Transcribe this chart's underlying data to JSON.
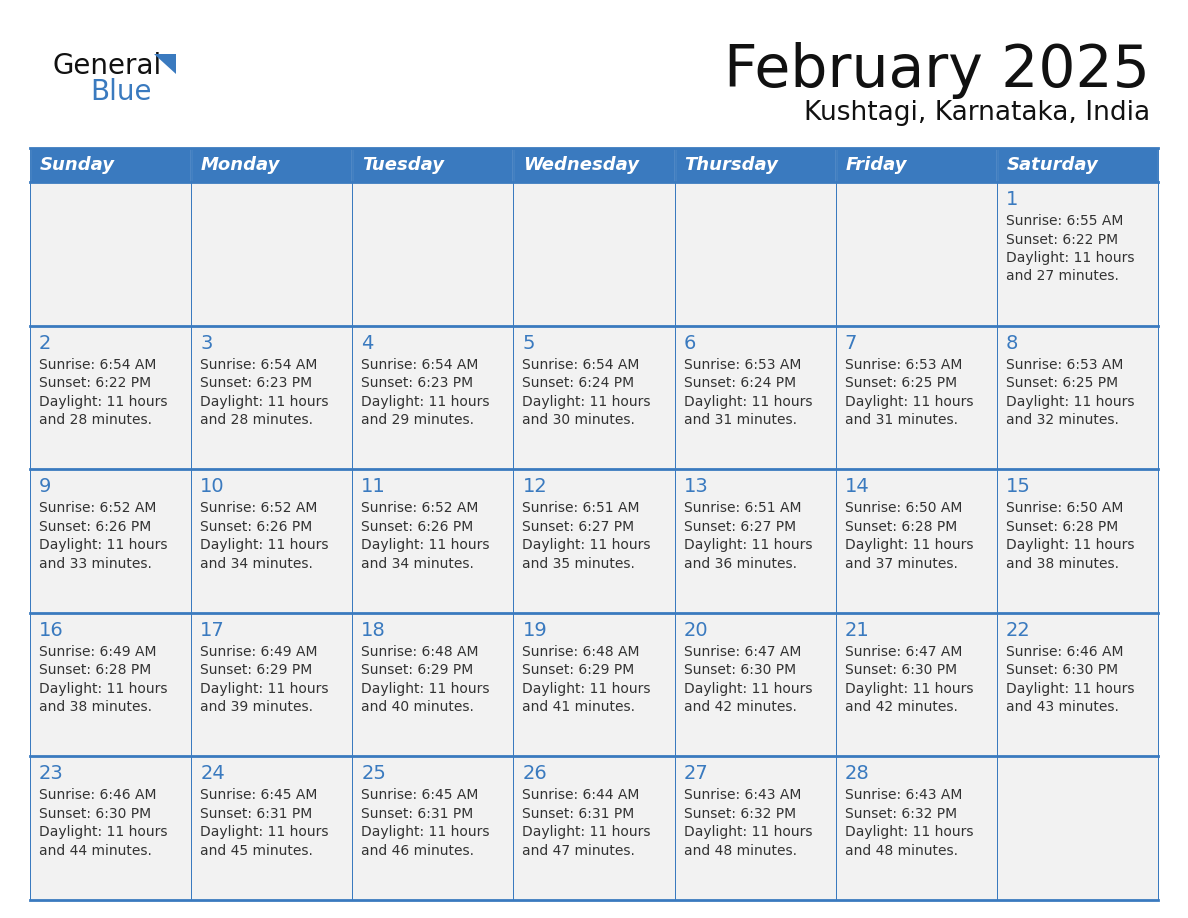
{
  "title": "February 2025",
  "subtitle": "Kushtagi, Karnataka, India",
  "header_color": "#3a7abf",
  "header_text_color": "#ffffff",
  "cell_bg_color": "#f2f2f2",
  "cell_bg_white": "#ffffff",
  "cell_border_color": "#3a7abf",
  "day_number_color": "#3a7abf",
  "cell_text_color": "#333333",
  "days_of_week": [
    "Sunday",
    "Monday",
    "Tuesday",
    "Wednesday",
    "Thursday",
    "Friday",
    "Saturday"
  ],
  "calendar_data": [
    [
      null,
      null,
      null,
      null,
      null,
      null,
      {
        "day": 1,
        "sunrise": "6:55 AM",
        "sunset": "6:22 PM",
        "daylight_min": "27"
      }
    ],
    [
      {
        "day": 2,
        "sunrise": "6:54 AM",
        "sunset": "6:22 PM",
        "daylight_min": "28"
      },
      {
        "day": 3,
        "sunrise": "6:54 AM",
        "sunset": "6:23 PM",
        "daylight_min": "28"
      },
      {
        "day": 4,
        "sunrise": "6:54 AM",
        "sunset": "6:23 PM",
        "daylight_min": "29"
      },
      {
        "day": 5,
        "sunrise": "6:54 AM",
        "sunset": "6:24 PM",
        "daylight_min": "30"
      },
      {
        "day": 6,
        "sunrise": "6:53 AM",
        "sunset": "6:24 PM",
        "daylight_min": "31"
      },
      {
        "day": 7,
        "sunrise": "6:53 AM",
        "sunset": "6:25 PM",
        "daylight_min": "31"
      },
      {
        "day": 8,
        "sunrise": "6:53 AM",
        "sunset": "6:25 PM",
        "daylight_min": "32"
      }
    ],
    [
      {
        "day": 9,
        "sunrise": "6:52 AM",
        "sunset": "6:26 PM",
        "daylight_min": "33"
      },
      {
        "day": 10,
        "sunrise": "6:52 AM",
        "sunset": "6:26 PM",
        "daylight_min": "34"
      },
      {
        "day": 11,
        "sunrise": "6:52 AM",
        "sunset": "6:26 PM",
        "daylight_min": "34"
      },
      {
        "day": 12,
        "sunrise": "6:51 AM",
        "sunset": "6:27 PM",
        "daylight_min": "35"
      },
      {
        "day": 13,
        "sunrise": "6:51 AM",
        "sunset": "6:27 PM",
        "daylight_min": "36"
      },
      {
        "day": 14,
        "sunrise": "6:50 AM",
        "sunset": "6:28 PM",
        "daylight_min": "37"
      },
      {
        "day": 15,
        "sunrise": "6:50 AM",
        "sunset": "6:28 PM",
        "daylight_min": "38"
      }
    ],
    [
      {
        "day": 16,
        "sunrise": "6:49 AM",
        "sunset": "6:28 PM",
        "daylight_min": "38"
      },
      {
        "day": 17,
        "sunrise": "6:49 AM",
        "sunset": "6:29 PM",
        "daylight_min": "39"
      },
      {
        "day": 18,
        "sunrise": "6:48 AM",
        "sunset": "6:29 PM",
        "daylight_min": "40"
      },
      {
        "day": 19,
        "sunrise": "6:48 AM",
        "sunset": "6:29 PM",
        "daylight_min": "41"
      },
      {
        "day": 20,
        "sunrise": "6:47 AM",
        "sunset": "6:30 PM",
        "daylight_min": "42"
      },
      {
        "day": 21,
        "sunrise": "6:47 AM",
        "sunset": "6:30 PM",
        "daylight_min": "42"
      },
      {
        "day": 22,
        "sunrise": "6:46 AM",
        "sunset": "6:30 PM",
        "daylight_min": "43"
      }
    ],
    [
      {
        "day": 23,
        "sunrise": "6:46 AM",
        "sunset": "6:30 PM",
        "daylight_min": "44"
      },
      {
        "day": 24,
        "sunrise": "6:45 AM",
        "sunset": "6:31 PM",
        "daylight_min": "45"
      },
      {
        "day": 25,
        "sunrise": "6:45 AM",
        "sunset": "6:31 PM",
        "daylight_min": "46"
      },
      {
        "day": 26,
        "sunrise": "6:44 AM",
        "sunset": "6:31 PM",
        "daylight_min": "47"
      },
      {
        "day": 27,
        "sunrise": "6:43 AM",
        "sunset": "6:32 PM",
        "daylight_min": "48"
      },
      {
        "day": 28,
        "sunrise": "6:43 AM",
        "sunset": "6:32 PM",
        "daylight_min": "48"
      },
      null
    ]
  ],
  "logo_text_general": "General",
  "logo_text_blue": "Blue",
  "logo_triangle_color": "#3a7abf"
}
